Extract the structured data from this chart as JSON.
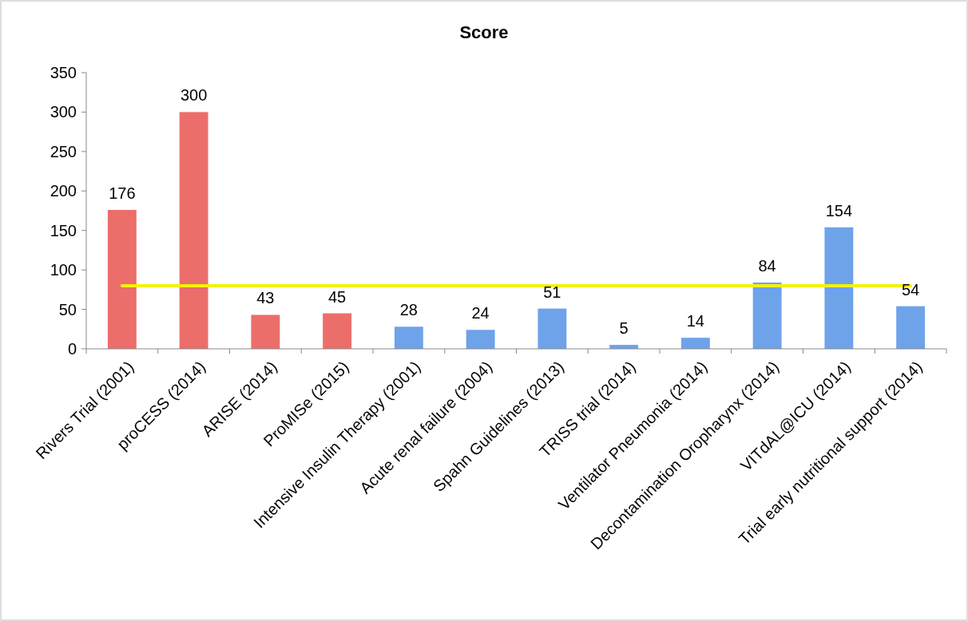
{
  "chart_data": {
    "type": "bar",
    "title": "Score",
    "categories": [
      "Rivers Trial (2001)",
      "proCESS (2014)",
      "ARISE (2014)",
      "ProMISe (2015)",
      "Intensive Insulin Therapy (2001)",
      "Acute renal failure (2004)",
      "Spahn Guidelines (2013)",
      "TRISS trial (2014)",
      "Ventilator Pneumonia (2014)",
      "Decontamination Oropharynx (2014)",
      "VITdAL@ICU (2014)",
      "Trial early nutritional support (2014)"
    ],
    "values": [
      176,
      300,
      43,
      45,
      28,
      24,
      51,
      5,
      14,
      84,
      154,
      54
    ],
    "colors": [
      "#ec6e6a",
      "#ec6e6a",
      "#ec6e6a",
      "#ec6e6a",
      "#6ea3ea",
      "#6ea3ea",
      "#6ea3ea",
      "#6ea3ea",
      "#6ea3ea",
      "#6ea3ea",
      "#6ea3ea",
      "#6ea3ea"
    ],
    "ylim": [
      0,
      350
    ],
    "yticks": [
      0,
      50,
      100,
      150,
      200,
      250,
      300,
      350
    ],
    "data_labels": true,
    "ref_lines": [
      {
        "axis": "y",
        "value": 80,
        "color": "#f2f20a",
        "line_style": "solid"
      }
    ]
  }
}
